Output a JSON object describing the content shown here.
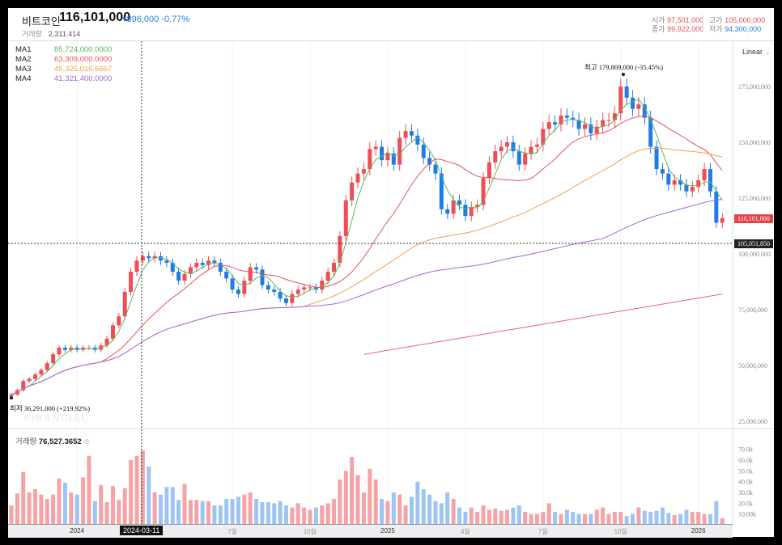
{
  "header": {
    "title": "비트코인",
    "price": "116,101,000",
    "change": "▾896,000 -0.77%",
    "volume_label": "거래량",
    "volume_value": "2,311.414",
    "ohlc": {
      "open_label": "시가",
      "open": "97,501,000",
      "high_label": "고가",
      "high": "105,000,000",
      "close_label": "종가",
      "close": "99,922,000",
      "low_label": "저가",
      "low": "94,300,000"
    }
  },
  "legend": [
    {
      "name": "MA1",
      "value": "85,724,000.0000",
      "color": "#5cb85c"
    },
    {
      "name": "MA2",
      "value": "63,309,000.0000",
      "color": "#e4525a"
    },
    {
      "name": "MA3",
      "value": "45,325,016.6667",
      "color": "#f0a050"
    },
    {
      "name": "MA4",
      "value": "41,321,400.0000",
      "color": "#a667d6"
    }
  ],
  "scale_mode": "Linear",
  "annotations": {
    "high": "최고  179,869,000 (-35.45%)",
    "low": "최저  36,291,000 (+219.92%)",
    "watermark": "FINANCIAL"
  },
  "price_axis": [
    "175,000,000",
    "150,000,000",
    "125,000,000",
    "100,000,000",
    "75,000,000",
    "50,000,000",
    "25,000,000"
  ],
  "price_axis_values": [
    175,
    150,
    125,
    100,
    75,
    50,
    25
  ],
  "current_price_tag": "116,101,000",
  "crosshair_price_tag": "105,051,850",
  "crosshair_date": "2024-03-11",
  "volume_panel": {
    "title": "거래량",
    "value": "76,527.3652",
    "axis": [
      "70.0k",
      "60.0k",
      "50.0k",
      "40.0k",
      "30.0k",
      "20.0k",
      "10.00k"
    ],
    "axis_values": [
      70,
      60,
      50,
      40,
      30,
      20,
      10
    ]
  },
  "x_axis": [
    {
      "label": "2024",
      "week": 11,
      "bold": true
    },
    {
      "label": "7월",
      "week": 37
    },
    {
      "label": "10월",
      "week": 50
    },
    {
      "label": "2025",
      "week": 63,
      "bold": true
    },
    {
      "label": "4월",
      "week": 76
    },
    {
      "label": "7월",
      "week": 89
    },
    {
      "label": "10월",
      "week": 102
    },
    {
      "label": "2026",
      "week": 115,
      "bold": true
    }
  ],
  "colors": {
    "up": "#ef4d55",
    "down": "#1f7be6",
    "vol_up": "#f5a3a6",
    "vol_down": "#9ec4f3",
    "ma5": "#e0637a"
  },
  "chart_data": {
    "type": "candlestick",
    "unit": "million KRW, weekly",
    "first_open": 36.3,
    "closes": [
      37,
      39,
      43,
      44,
      46,
      48,
      51,
      55,
      58,
      57,
      58,
      57,
      58,
      58,
      57,
      59,
      62,
      68,
      72,
      83,
      92,
      97,
      99,
      98,
      99,
      97,
      96,
      92,
      88,
      91,
      94,
      96,
      95,
      97,
      96,
      92,
      89,
      84,
      82,
      88,
      94,
      93,
      86,
      84,
      83,
      80,
      78,
      82,
      84,
      85,
      85,
      84,
      88,
      92,
      96,
      108,
      124,
      132,
      136,
      138,
      147,
      148,
      142,
      145,
      140,
      152,
      155,
      153,
      149,
      143,
      140,
      136,
      120,
      118,
      124,
      122,
      117,
      121,
      122,
      134,
      141,
      146,
      148,
      150,
      146,
      140,
      145,
      148,
      149,
      156,
      159,
      158,
      162,
      161,
      160,
      156,
      158,
      154,
      157,
      160,
      160,
      163,
      175,
      170,
      165,
      167,
      161,
      148,
      138,
      136,
      131,
      133,
      131,
      128,
      130,
      133,
      138,
      128,
      114,
      116
    ],
    "volumes_k": [
      18,
      29,
      49,
      30,
      33,
      28,
      24,
      28,
      43,
      39,
      30,
      28,
      44,
      64,
      22,
      37,
      21,
      36,
      23,
      34,
      60,
      64,
      69,
      54,
      30,
      28,
      35,
      35,
      23,
      38,
      23,
      23,
      22,
      22,
      18,
      18,
      24,
      24,
      26,
      28,
      30,
      24,
      21,
      21,
      20,
      22,
      18,
      16,
      20,
      16,
      14,
      16,
      18,
      20,
      24,
      42,
      50,
      63,
      46,
      30,
      52,
      42,
      24,
      22,
      30,
      28,
      18,
      26,
      40,
      33,
      28,
      22,
      20,
      30,
      24,
      16,
      12,
      16,
      12,
      18,
      14,
      15,
      13,
      14,
      16,
      18,
      12,
      10,
      10,
      12,
      20,
      12,
      10,
      14,
      12,
      10,
      10,
      10,
      14,
      16,
      10,
      12,
      12,
      8,
      10,
      16,
      13,
      12,
      13,
      16,
      11,
      9,
      10,
      14,
      12,
      12,
      10,
      10,
      22,
      6
    ],
    "ma_periods": [
      4,
      16,
      50,
      100
    ],
    "extra_line": {
      "start_week": 59,
      "start_value": 55,
      "end_week": 119,
      "end_value": 82
    },
    "ylim": [
      25,
      180
    ]
  }
}
